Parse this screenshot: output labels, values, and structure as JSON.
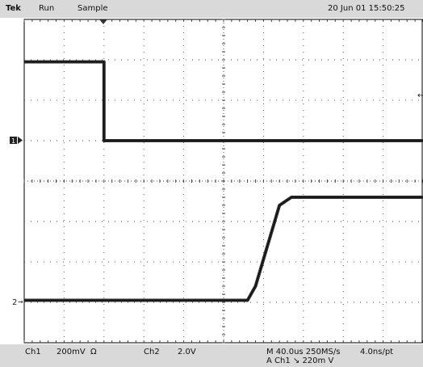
{
  "header": {
    "brand": "Tek",
    "run_state": "Run",
    "acq_mode": "Sample",
    "datetime": "20 Jun 01 15:50:25"
  },
  "footer": {
    "ch1_label": "Ch1",
    "ch1_scale": "200mV",
    "ch1_coupling": "Ω",
    "ch2_label": "Ch2",
    "ch2_scale": "2.0V",
    "timebase": "M 40.0us 250MS/s",
    "sample_interval": "4.0ns/pt",
    "trigger": "A  Ch1  ↘  220m   V"
  },
  "markers": {
    "ch2_marker": "2",
    "ch1_marker": "1"
  },
  "colors": {
    "background": "#ffffff",
    "grid": "#000000",
    "trace": "#303030",
    "bar": "#d9d9d9"
  },
  "chart_data": {
    "type": "line",
    "x_divisions": 10,
    "y_divisions": 8,
    "series": [
      {
        "x": [
          0,
          2.0,
          2.0,
          10
        ],
        "y": [
          2.95,
          2.95,
          1.0,
          1.0
        ]
      },
      {
        "x": [
          0,
          5.6,
          5.8,
          6.4,
          6.7,
          10
        ],
        "y": [
          -2.95,
          -2.95,
          -2.6,
          -0.6,
          -0.4,
          -0.4
        ]
      }
    ]
  }
}
